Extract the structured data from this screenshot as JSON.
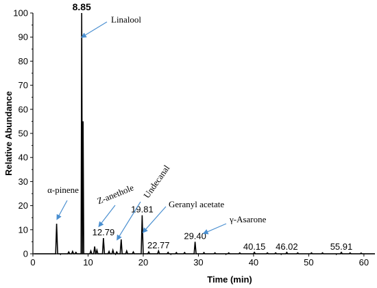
{
  "chart_data": {
    "type": "line",
    "xlabel": "Time (min)",
    "ylabel": "Relative Abundance",
    "xlim": [
      0,
      62
    ],
    "ylim": [
      0,
      100
    ],
    "x_ticks": [
      "0",
      "10",
      "20",
      "30",
      "40",
      "50",
      "60"
    ],
    "y_ticks": [
      "0",
      "10",
      "20",
      "30",
      "40",
      "50",
      "60",
      "70",
      "80",
      "90",
      "100"
    ],
    "peaks": [
      {
        "x": 4.3,
        "y": 12.5
      },
      {
        "x": 8.85,
        "y": 100,
        "label": "8.85"
      },
      {
        "x": 9.1,
        "y": 55
      },
      {
        "x": 12.79,
        "y": 6.5,
        "label": "12.79"
      },
      {
        "x": 16.0,
        "y": 6
      },
      {
        "x": 19.81,
        "y": 16,
        "label": "19.81"
      },
      {
        "x": 22.77,
        "y": 1.2,
        "label": "22.77"
      },
      {
        "x": 29.4,
        "y": 5,
        "label": "29.40"
      },
      {
        "x": 40.15,
        "y": 0.6,
        "label": "40.15"
      },
      {
        "x": 46.02,
        "y": 0.6,
        "label": "46.02"
      },
      {
        "x": 55.91,
        "y": 0.6,
        "label": "55.91"
      }
    ],
    "annotations": [
      {
        "text": "Linalool",
        "x": 8.9,
        "y": 90
      },
      {
        "text": "α-pinene",
        "x": 4.4,
        "y": 14.5
      },
      {
        "text": "Z-anethole",
        "x": 12.0,
        "y": 11.5
      },
      {
        "text": "Undecanal",
        "x": 15.3,
        "y": 6
      },
      {
        "text": "Geranyl acetate",
        "x": 20.0,
        "y": 9
      },
      {
        "text": "γ-Asarone",
        "x": 31.0,
        "y": 8.5
      }
    ]
  }
}
